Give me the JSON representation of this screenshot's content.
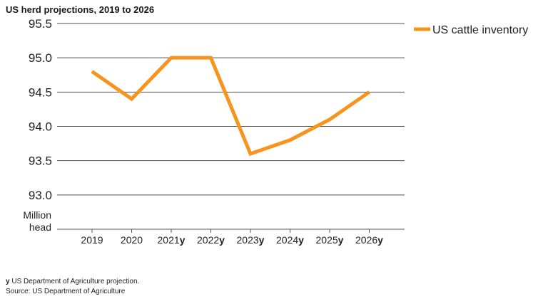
{
  "chart_data": {
    "type": "line",
    "title": "US herd projections, 2019 to 2026",
    "ylabel_lines": [
      "Million",
      "head"
    ],
    "xlabel": "",
    "categories": [
      "2019",
      "2020",
      "2021y",
      "2022y",
      "2023y",
      "2024y",
      "2025y",
      "2026y"
    ],
    "series": [
      {
        "name": "US cattle inventory",
        "color": "#f7941d",
        "values": [
          94.8,
          94.4,
          95.0,
          95.0,
          93.6,
          93.8,
          94.1,
          94.5
        ]
      }
    ],
    "ylim": [
      92.5,
      95.5
    ],
    "y_ticks": [
      "95.5",
      "95.0",
      "94.5",
      "94.0",
      "93.5",
      "93.0"
    ],
    "grid": true,
    "legend_position": "top-right"
  },
  "footnotes": {
    "projection_marker": "y",
    "projection_text": " US Department of Agriculture projection.",
    "source": "Source: US Department of Agriculture"
  }
}
